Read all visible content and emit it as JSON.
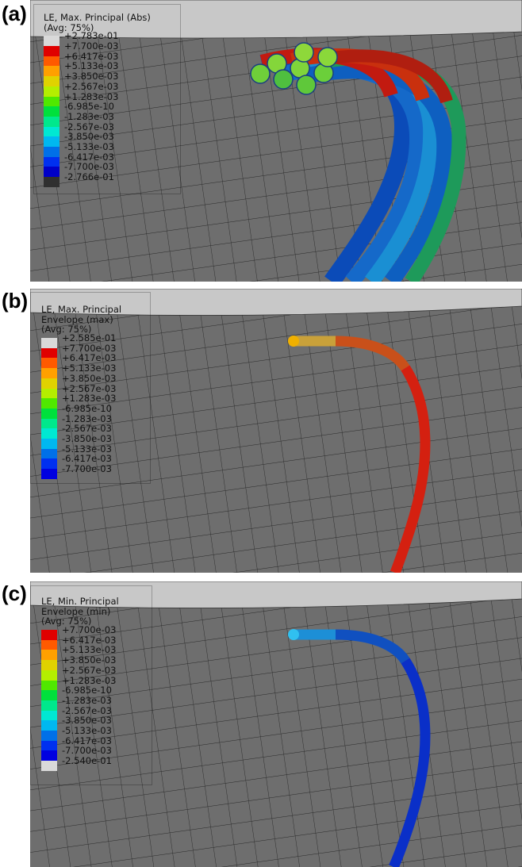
{
  "panels": [
    {
      "id": "a",
      "label": "(a)",
      "legend_title": [
        "LE, Max. Principal (Abs)",
        "(Avg: 75%)"
      ],
      "legend_values": [
        "+2.783e-01",
        "+7.700e-03",
        "+6.417e-03",
        "+5.133e-03",
        "+3.850e-03",
        "+2.567e-03",
        "+1.283e-03",
        "-6.985e-10",
        "-1.283e-03",
        "-2.567e-03",
        "-3.850e-03",
        "-5.133e-03",
        "-6.417e-03",
        "-7.700e-03",
        "-2.766e-01"
      ],
      "legend_colors": [
        "#d9d9d9",
        "#e00000",
        "#ff5a00",
        "#ffa000",
        "#e0d200",
        "#b4ee00",
        "#50e800",
        "#00e03c",
        "#00e88c",
        "#00e8d2",
        "#00b8f0",
        "#0070e8",
        "#0030f0",
        "#0000c8",
        "#303030"
      ]
    },
    {
      "id": "b",
      "label": "(b)",
      "legend_title": [
        "LE, Max. Principal",
        "Envelope (max)",
        "(Avg: 75%)"
      ],
      "legend_values": [
        "+2.585e-01",
        "+7.700e-03",
        "+6.417e-03",
        "+5.133e-03",
        "+3.850e-03",
        "+2.567e-03",
        "+1.283e-03",
        "-6.985e-10",
        "-1.283e-03",
        "-2.567e-03",
        "-3.850e-03",
        "-5.133e-03",
        "-6.417e-03",
        "-7.700e-03"
      ],
      "legend_colors": [
        "#d9d9d9",
        "#e00000",
        "#ff5a00",
        "#ffa000",
        "#e0d200",
        "#b4ee00",
        "#50e800",
        "#00e03c",
        "#00e88c",
        "#00e8d2",
        "#00b8f0",
        "#0070e8",
        "#0030f0",
        "#0000e0"
      ]
    },
    {
      "id": "c",
      "label": "(c)",
      "legend_title": [
        "LE, Min. Principal",
        "Envelope (min)",
        "(Avg: 75%)"
      ],
      "legend_values": [
        "+7.700e-03",
        "+6.417e-03",
        "+5.133e-03",
        "+3.850e-03",
        "+2.567e-03",
        "+1.283e-03",
        "-6.985e-10",
        "-1.283e-03",
        "-2.567e-03",
        "-3.850e-03",
        "-5.133e-03",
        "-6.417e-03",
        "-7.700e-03",
        "-2.540e-01"
      ],
      "legend_colors": [
        "#e00000",
        "#ff5a00",
        "#ffa000",
        "#e0d200",
        "#b4ee00",
        "#50e800",
        "#00e03c",
        "#00e88c",
        "#00e8d2",
        "#00b8f0",
        "#0070e8",
        "#0030f0",
        "#0000e0",
        "#d9d9d9"
      ]
    }
  ]
}
